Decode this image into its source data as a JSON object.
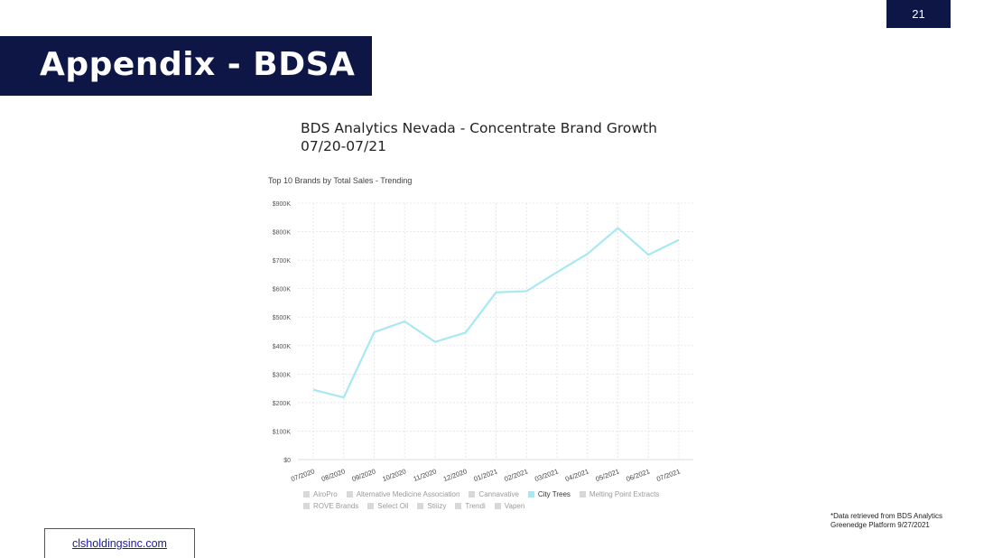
{
  "slide": {
    "page_number": "21",
    "title": "Appendix - BDSA",
    "chart_heading": "BDS Analytics Nevada - Concentrate Brand Growth 07/20-07/21",
    "footnote_line1": "*Data retrieved from BDS Analytics",
    "footnote_line2": "Greenedge Platform 9/27/2021",
    "website": "clsholdingsinc.com"
  },
  "legend": {
    "row1": [
      "AiroPro",
      "Alternative Medicine Association",
      "Cannavative",
      "City Trees",
      "Melting Point Extracts"
    ],
    "row2": [
      "ROVE Brands",
      "Select Oil",
      "Stiiizy",
      "Trendi",
      "Vapen"
    ],
    "active": "City Trees"
  },
  "chart_data": {
    "type": "line",
    "title": "Top 10 Brands by Total Sales - Trending",
    "xlabel": "",
    "ylabel": "",
    "categories": [
      "07/2020",
      "08/2020",
      "09/2020",
      "10/2020",
      "11/2020",
      "12/2020",
      "01/2021",
      "02/2021",
      "03/2021",
      "04/2021",
      "05/2021",
      "06/2021",
      "07/2021"
    ],
    "y_ticks": [
      "$0",
      "$100K",
      "$200K",
      "$300K",
      "$400K",
      "$500K",
      "$600K",
      "$700K",
      "$800K",
      "$900K"
    ],
    "ylim": [
      0,
      900000
    ],
    "grid": true,
    "legend_position": "bottom",
    "series": [
      {
        "name": "City Trees",
        "color": "#a8e8f3",
        "values": [
          245000,
          218000,
          447000,
          485000,
          413000,
          446000,
          587000,
          591000,
          658000,
          722000,
          813000,
          719000,
          771000
        ]
      }
    ]
  }
}
